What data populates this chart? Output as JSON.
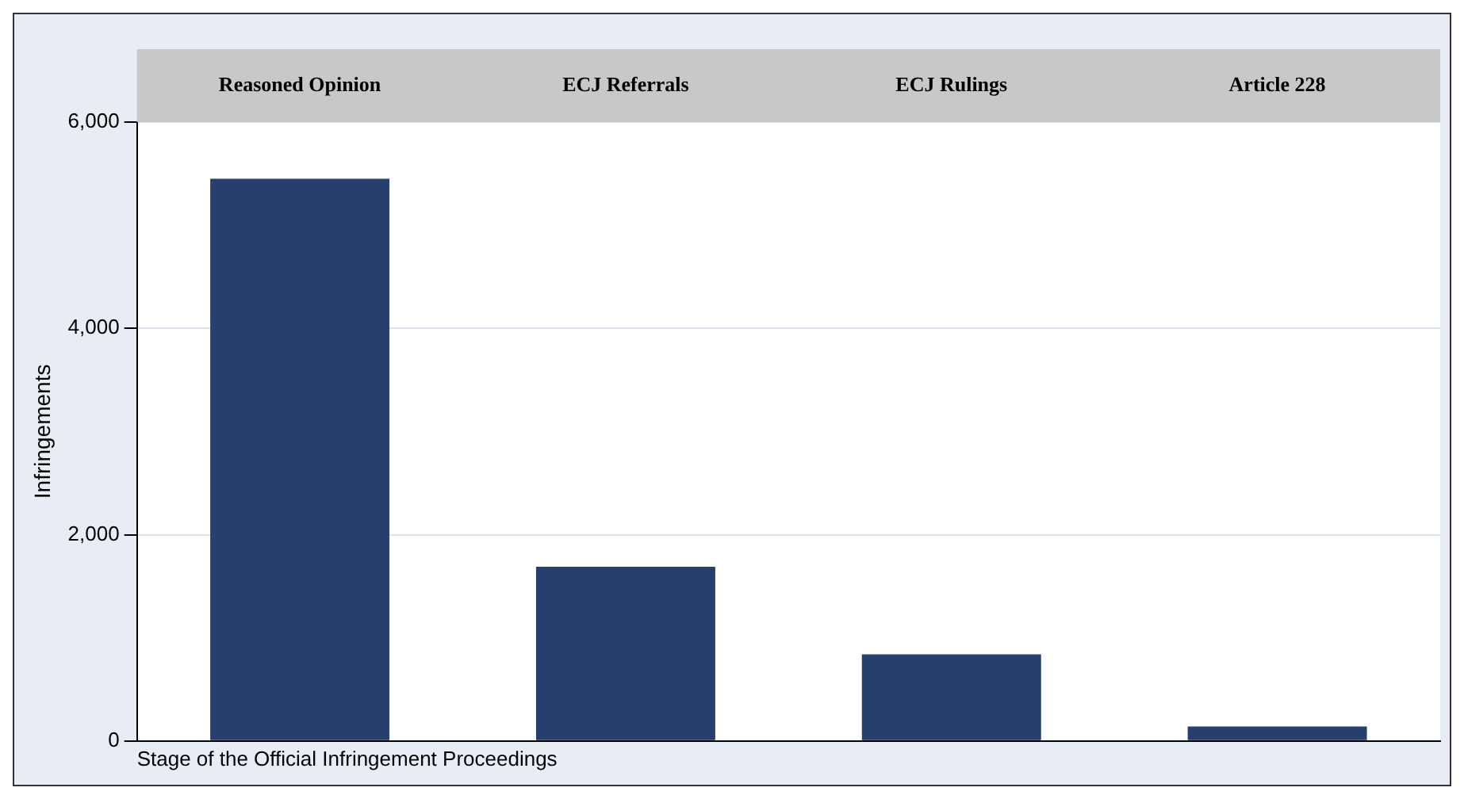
{
  "chart_data": {
    "type": "bar",
    "categories": [
      "Reasoned Opinion",
      "ECJ Referrals",
      "ECJ Rulings",
      "Article 228"
    ],
    "values": [
      5450,
      1690,
      840,
      140
    ],
    "color": "#273f6d",
    "ylim": [
      0,
      6000
    ],
    "yticks": [
      {
        "value": 0,
        "label": "0"
      },
      {
        "value": 2000,
        "label": "2,000"
      },
      {
        "value": 4000,
        "label": "4,000"
      },
      {
        "value": 6000,
        "label": "6,000"
      }
    ],
    "grid": "y",
    "xlabel": "Stage of the Official Infringement Proceedings",
    "ylabel": "Infringements",
    "legend": false
  }
}
